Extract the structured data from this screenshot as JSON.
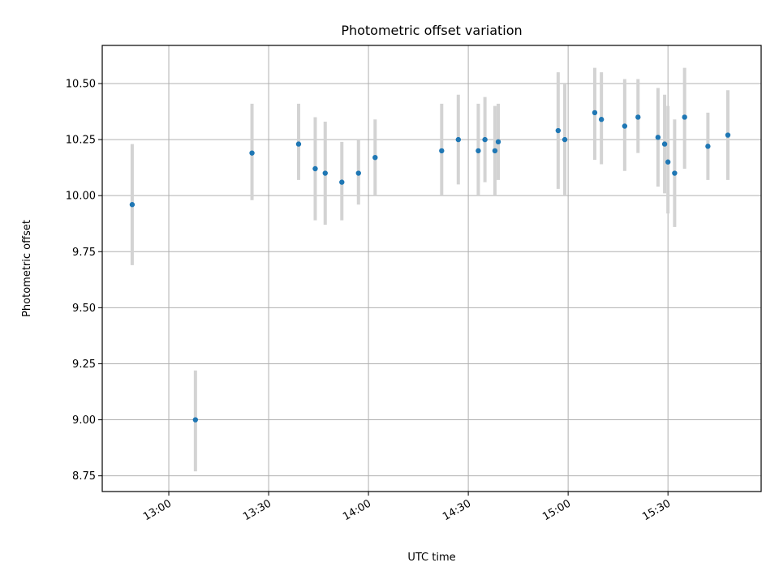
{
  "chart_data": {
    "type": "scatter",
    "title": "Photometric offset variation",
    "xlabel": "UTC time",
    "ylabel": "Photometric offset",
    "x_axis_type": "time",
    "xlim": [
      "12:40",
      "15:58"
    ],
    "ylim": [
      8.68,
      10.67
    ],
    "x_ticks": [
      "13:00",
      "13:30",
      "14:00",
      "14:30",
      "15:00",
      "15:30"
    ],
    "y_ticks": [
      8.75,
      9.0,
      9.25,
      9.5,
      9.75,
      10.0,
      10.25,
      10.5
    ],
    "y_tick_labels": [
      "8.75",
      "9.00",
      "9.25",
      "9.50",
      "9.75",
      "10.00",
      "10.25",
      "10.50"
    ],
    "grid": true,
    "colors": {
      "points": "#1f77b4",
      "errorbars": "#d3d3d3",
      "grid": "#b0b0b0"
    },
    "points": [
      {
        "x": "12:49",
        "y": 9.96,
        "ylow": 9.69,
        "yhigh": 10.23
      },
      {
        "x": "13:08",
        "y": 9.0,
        "ylow": 8.77,
        "yhigh": 9.22
      },
      {
        "x": "13:25",
        "y": 10.19,
        "ylow": 9.98,
        "yhigh": 10.41
      },
      {
        "x": "13:39",
        "y": 10.23,
        "ylow": 10.07,
        "yhigh": 10.41
      },
      {
        "x": "13:44",
        "y": 10.12,
        "ylow": 9.89,
        "yhigh": 10.35
      },
      {
        "x": "13:47",
        "y": 10.1,
        "ylow": 9.87,
        "yhigh": 10.33
      },
      {
        "x": "13:52",
        "y": 10.06,
        "ylow": 9.89,
        "yhigh": 10.24
      },
      {
        "x": "13:57",
        "y": 10.1,
        "ylow": 9.96,
        "yhigh": 10.25
      },
      {
        "x": "14:02",
        "y": 10.17,
        "ylow": 10.0,
        "yhigh": 10.34
      },
      {
        "x": "14:22",
        "y": 10.2,
        "ylow": 10.0,
        "yhigh": 10.41
      },
      {
        "x": "14:27",
        "y": 10.25,
        "ylow": 10.05,
        "yhigh": 10.45
      },
      {
        "x": "14:33",
        "y": 10.2,
        "ylow": 10.0,
        "yhigh": 10.41
      },
      {
        "x": "14:35",
        "y": 10.25,
        "ylow": 10.06,
        "yhigh": 10.44
      },
      {
        "x": "14:38",
        "y": 10.2,
        "ylow": 10.0,
        "yhigh": 10.4
      },
      {
        "x": "14:39",
        "y": 10.24,
        "ylow": 10.07,
        "yhigh": 10.41
      },
      {
        "x": "14:57",
        "y": 10.29,
        "ylow": 10.03,
        "yhigh": 10.55
      },
      {
        "x": "14:59",
        "y": 10.25,
        "ylow": 10.0,
        "yhigh": 10.5
      },
      {
        "x": "15:08",
        "y": 10.37,
        "ylow": 10.16,
        "yhigh": 10.57
      },
      {
        "x": "15:10",
        "y": 10.34,
        "ylow": 10.14,
        "yhigh": 10.55
      },
      {
        "x": "15:17",
        "y": 10.31,
        "ylow": 10.11,
        "yhigh": 10.52
      },
      {
        "x": "15:21",
        "y": 10.35,
        "ylow": 10.19,
        "yhigh": 10.52
      },
      {
        "x": "15:27",
        "y": 10.26,
        "ylow": 10.04,
        "yhigh": 10.48
      },
      {
        "x": "15:29",
        "y": 10.23,
        "ylow": 10.01,
        "yhigh": 10.45
      },
      {
        "x": "15:30",
        "y": 10.15,
        "ylow": 9.92,
        "yhigh": 10.4
      },
      {
        "x": "15:32",
        "y": 10.1,
        "ylow": 9.86,
        "yhigh": 10.34
      },
      {
        "x": "15:35",
        "y": 10.35,
        "ylow": 10.12,
        "yhigh": 10.57
      },
      {
        "x": "15:42",
        "y": 10.22,
        "ylow": 10.07,
        "yhigh": 10.37
      },
      {
        "x": "15:48",
        "y": 10.27,
        "ylow": 10.07,
        "yhigh": 10.47
      }
    ]
  }
}
